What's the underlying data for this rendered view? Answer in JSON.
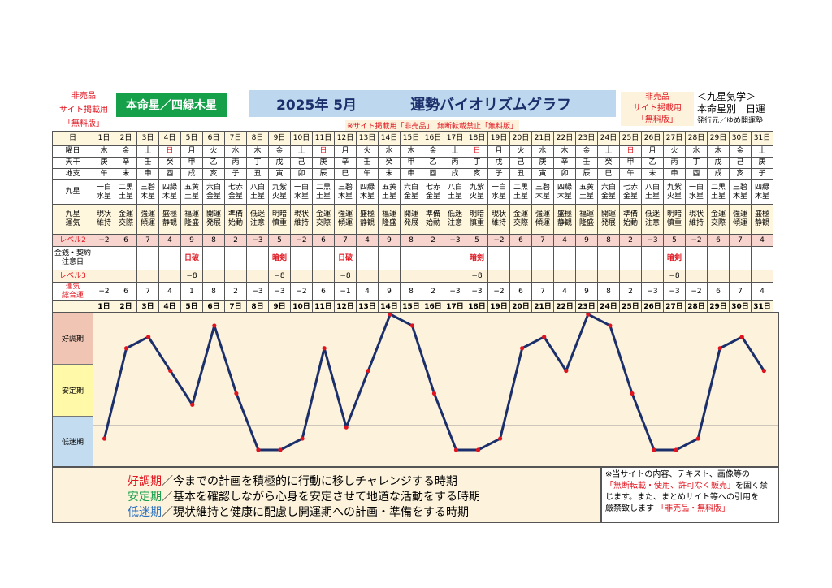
{
  "header": {
    "not_for_sale_left": [
      "非売品",
      "サイト掲載用",
      "「無料版」"
    ],
    "honmeisei": "本命星／四緑木星",
    "year_month": "2025年 5月",
    "title": "運勢バイオリズムグラフ",
    "not_for_sale_right": [
      "非売品",
      "サイト掲載用",
      "「無料版」"
    ],
    "kyusei_title": "＜九星気学＞",
    "kyusei_sub": "本命星別　日運",
    "publisher": "発行元／ゆめ開運塾",
    "notice": "※サイト掲載用「非売品」　無断転載禁止「無料版」"
  },
  "row_labels": {
    "day": "日",
    "dow": "曜日",
    "tenkan": "天干",
    "chishi": "地支",
    "kyusei": "九星",
    "unki": "九星運気",
    "level2": "レベル2",
    "money": "金銭・契約注意日",
    "level3": "レベル3",
    "total": "運気総合運"
  },
  "days": [
    "1日",
    "2日",
    "3日",
    "4日",
    "5日",
    "6日",
    "7日",
    "8日",
    "9日",
    "10日",
    "11日",
    "12日",
    "13日",
    "14日",
    "15日",
    "16日",
    "17日",
    "18日",
    "19日",
    "20日",
    "21日",
    "22日",
    "23日",
    "24日",
    "25日",
    "26日",
    "27日",
    "28日",
    "29日",
    "30日",
    "31日"
  ],
  "dow": [
    "木",
    "金",
    "土",
    "日",
    "月",
    "火",
    "水",
    "木",
    "金",
    "土",
    "日",
    "月",
    "火",
    "水",
    "木",
    "金",
    "土",
    "日",
    "月",
    "火",
    "水",
    "木",
    "金",
    "土",
    "日",
    "月",
    "火",
    "水",
    "木",
    "金",
    "土"
  ],
  "sunday_index": [
    3,
    10,
    17,
    24
  ],
  "tenkan": [
    "庚",
    "辛",
    "壬",
    "癸",
    "甲",
    "乙",
    "丙",
    "丁",
    "戊",
    "己",
    "庚",
    "辛",
    "壬",
    "癸",
    "甲",
    "乙",
    "丙",
    "丁",
    "戊",
    "己",
    "庚",
    "辛",
    "壬",
    "癸",
    "甲",
    "乙",
    "丙",
    "丁",
    "戊",
    "己",
    "庚"
  ],
  "chishi": [
    "午",
    "未",
    "申",
    "酉",
    "戌",
    "亥",
    "子",
    "丑",
    "寅",
    "卯",
    "辰",
    "巳",
    "午",
    "未",
    "申",
    "酉",
    "戌",
    "亥",
    "子",
    "丑",
    "寅",
    "卯",
    "辰",
    "巳",
    "午",
    "未",
    "申",
    "酉",
    "戌",
    "亥",
    "子"
  ],
  "kyusei": [
    "一白水星",
    "二黒土星",
    "三碧木星",
    "四緑木星",
    "五黄土星",
    "六白金星",
    "七赤金星",
    "八白土星",
    "九紫火星",
    "一白水星",
    "二黒土星",
    "三碧木星",
    "四緑木星",
    "五黄土星",
    "六白金星",
    "七赤金星",
    "八白土星",
    "九紫火星",
    "一白水星",
    "二黒土星",
    "三碧木星",
    "四緑木星",
    "五黄土星",
    "六白金星",
    "七赤金星",
    "八白土星",
    "九紫火星",
    "一白水星",
    "二黒土星",
    "三碧木星",
    "四緑木星"
  ],
  "unki": [
    "現状維持",
    "金運交際",
    "強運傾運",
    "盛極静観",
    "福運隆盛",
    "開運発展",
    "準備始動",
    "低迷注意",
    "明暗慎重",
    "現状維持",
    "金運交際",
    "強運傾運",
    "盛極静観",
    "福運隆盛",
    "開運発展",
    "準備始動",
    "低迷注意",
    "明暗慎重",
    "現状維持",
    "金運交際",
    "強運傾運",
    "盛極静観",
    "福運隆盛",
    "開運発展",
    "準備始動",
    "低迷注意",
    "明暗慎重",
    "現状維持",
    "金運交際",
    "強運傾運",
    "盛極静観"
  ],
  "level2": [
    "−2",
    "6",
    "7",
    "4",
    "9",
    "8",
    "2",
    "−3",
    "5",
    "−2",
    "6",
    "7",
    "4",
    "9",
    "8",
    "2",
    "−3",
    "5",
    "−2",
    "6",
    "7",
    "4",
    "9",
    "8",
    "2",
    "−3",
    "5",
    "−2",
    "6",
    "7",
    "4"
  ],
  "money": [
    "",
    "",
    "",
    "",
    "日破",
    "",
    "",
    "",
    "暗剣",
    "",
    "",
    "日破",
    "",
    "",
    "",
    "",
    "",
    "暗剣",
    "",
    "",
    "",
    "",
    "",
    "",
    "",
    "",
    "暗剣",
    "",
    "",
    "",
    ""
  ],
  "level3": [
    "",
    "",
    "",
    "",
    "−8",
    "",
    "",
    "",
    "−8",
    "",
    "",
    "−8",
    "",
    "",
    "",
    "",
    "",
    "−8",
    "",
    "",
    "",
    "",
    "",
    "",
    "",
    "",
    "−8",
    "",
    "",
    "",
    ""
  ],
  "total": [
    "−2",
    "6",
    "7",
    "4",
    "1",
    "8",
    "2",
    "−3",
    "−3",
    "−2",
    "6",
    "−1",
    "4",
    "9",
    "8",
    "2",
    "−3",
    "−3",
    "−2",
    "6",
    "7",
    "4",
    "9",
    "8",
    "2",
    "−3",
    "−3",
    "−2",
    "6",
    "7",
    "4"
  ],
  "chart_data": {
    "type": "line",
    "title": "運勢バイオリズムグラフ",
    "categories": [
      "1日",
      "2日",
      "3日",
      "4日",
      "5日",
      "6日",
      "7日",
      "8日",
      "9日",
      "10日",
      "11日",
      "12日",
      "13日",
      "14日",
      "15日",
      "16日",
      "17日",
      "18日",
      "19日",
      "20日",
      "21日",
      "22日",
      "23日",
      "24日",
      "25日",
      "26日",
      "27日",
      "28日",
      "29日",
      "30日",
      "31日"
    ],
    "series": [
      {
        "values": [
          -2,
          6,
          7,
          4,
          1,
          8,
          2,
          -3,
          -3,
          -2,
          6,
          -1,
          4,
          9,
          8,
          2,
          -3,
          -3,
          -2,
          6,
          7,
          4,
          9,
          8,
          2,
          -3,
          -3,
          -2,
          6,
          7,
          4
        ]
      }
    ],
    "ylim": [
      -3,
      9
    ],
    "bands": [
      "好調期",
      "安定期",
      "低迷期"
    ],
    "line_color": "#1b2f6b",
    "point_color": "#e0141e"
  },
  "legend": {
    "lines": [
      {
        "key": "好調期",
        "text": "／今までの計画を積極的に行動に移しチャレンジする時期"
      },
      {
        "key": "安定期",
        "text": "／基本を確認しながら心身を安定させて地道な活動をする時期"
      },
      {
        "key": "低迷期",
        "text": "／現状維持と健康に配慮し開運期への計画・準備をする時期"
      }
    ]
  },
  "copyright": {
    "line1": "※当サイトの内容、テキスト、画像等の",
    "line2_red": "「無断転載・使用、許可なく販売」",
    "line2_tail": "を固く禁",
    "line3": "じます。また、まとめサイト等への引用を",
    "line4": "厳禁致します",
    "line4_red": "「非売品・無料版」"
  }
}
